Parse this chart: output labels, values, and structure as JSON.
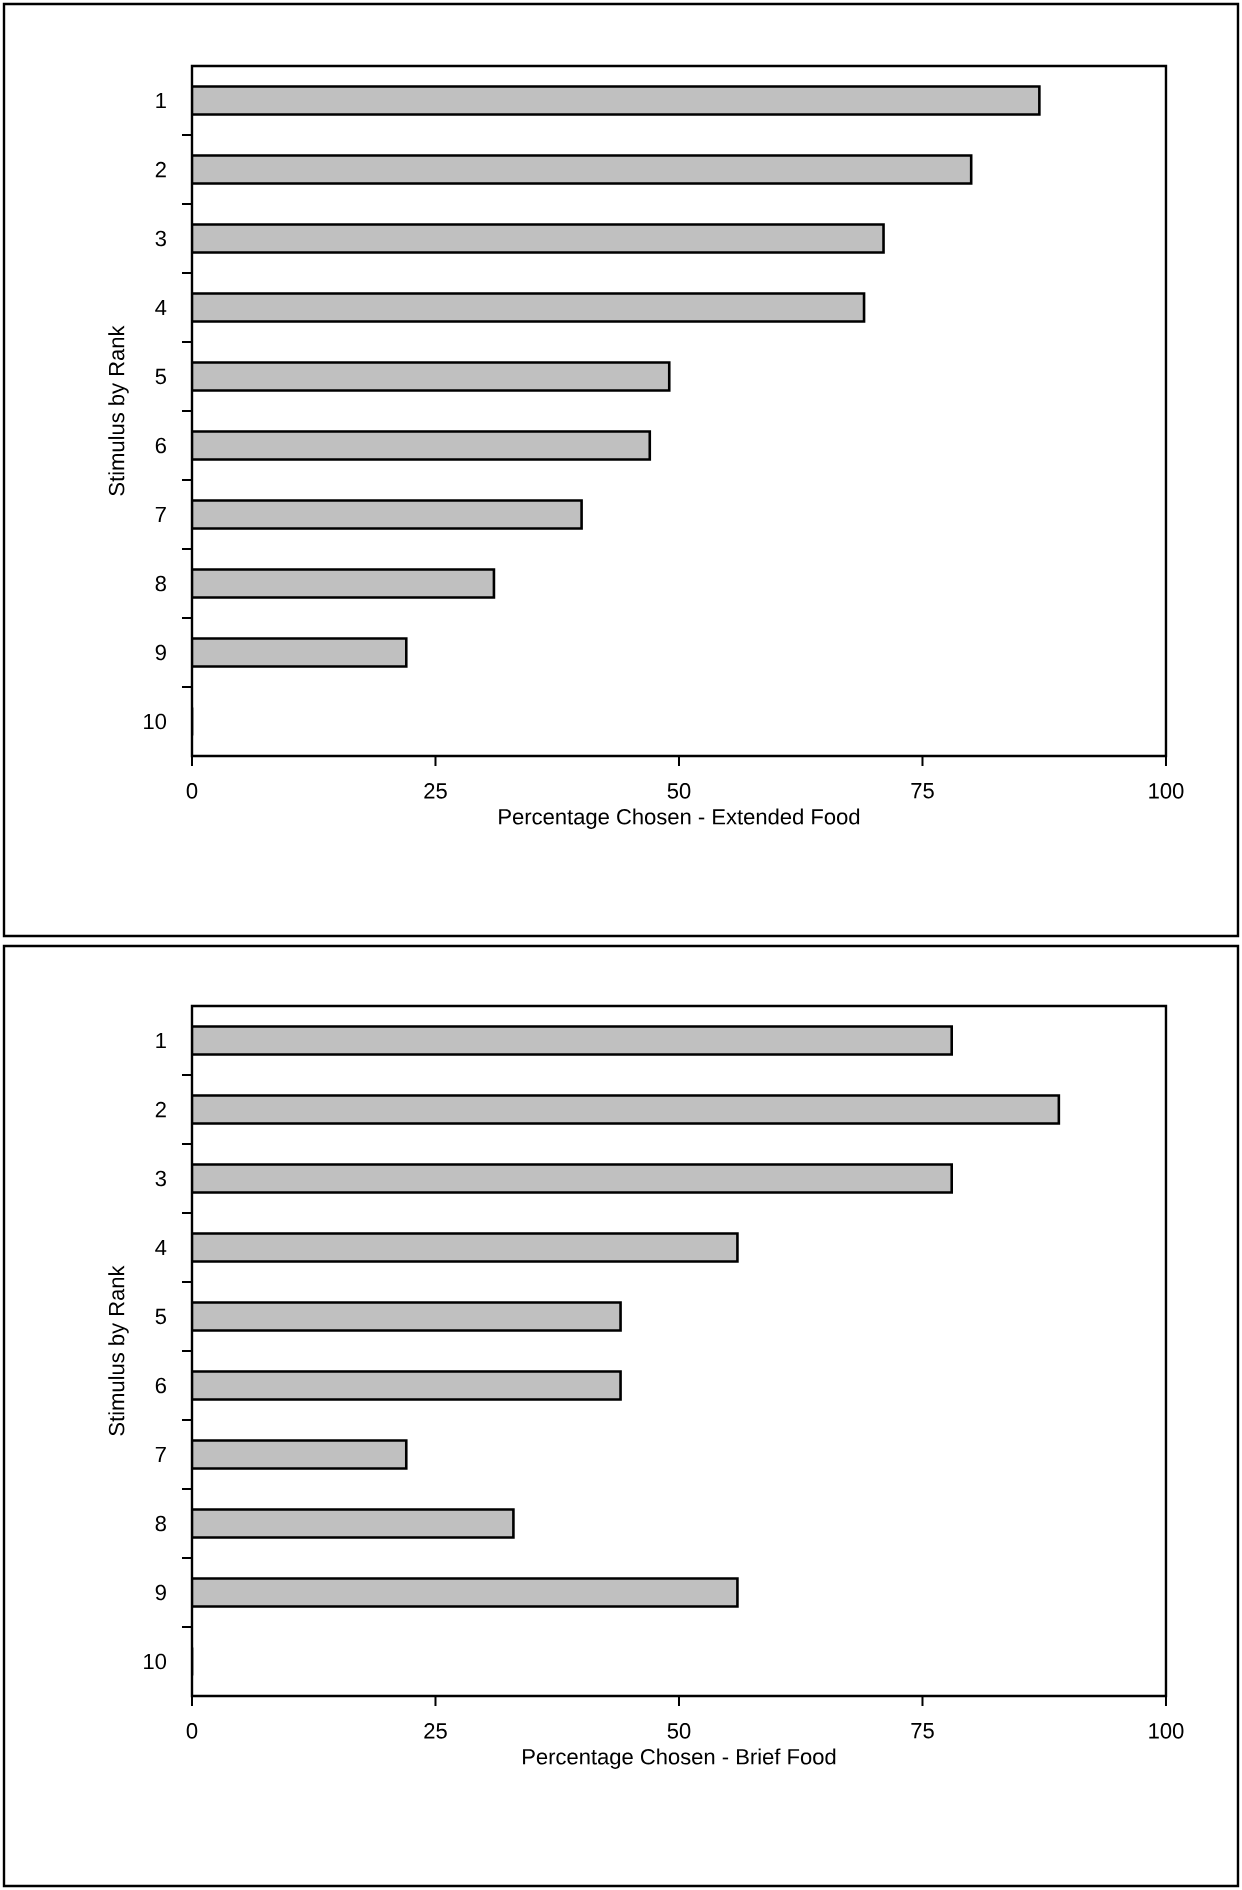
{
  "chart_data": [
    {
      "type": "bar",
      "orientation": "horizontal",
      "categories": [
        "1",
        "2",
        "3",
        "4",
        "5",
        "6",
        "7",
        "8",
        "9",
        "10"
      ],
      "values": [
        87,
        80,
        71,
        69,
        49,
        47,
        40,
        31,
        22,
        0
      ],
      "color": "#c0c0c0",
      "xlim": [
        0,
        100
      ],
      "xticks": [
        0,
        25,
        50,
        75,
        100
      ],
      "xlabel": "Percentage Chosen - Extended Food",
      "ylabel": "Stimulus by Rank"
    },
    {
      "type": "bar",
      "orientation": "horizontal",
      "categories": [
        "1",
        "2",
        "3",
        "4",
        "5",
        "6",
        "7",
        "8",
        "9",
        "10"
      ],
      "values": [
        78,
        89,
        78,
        56,
        44,
        44,
        22,
        33,
        56,
        0
      ],
      "color": "#c0c0c0",
      "xlim": [
        0,
        100
      ],
      "xticks": [
        0,
        25,
        50,
        75,
        100
      ],
      "xlabel": "Percentage Chosen - Brief Food",
      "ylabel": "Stimulus by Rank"
    }
  ]
}
